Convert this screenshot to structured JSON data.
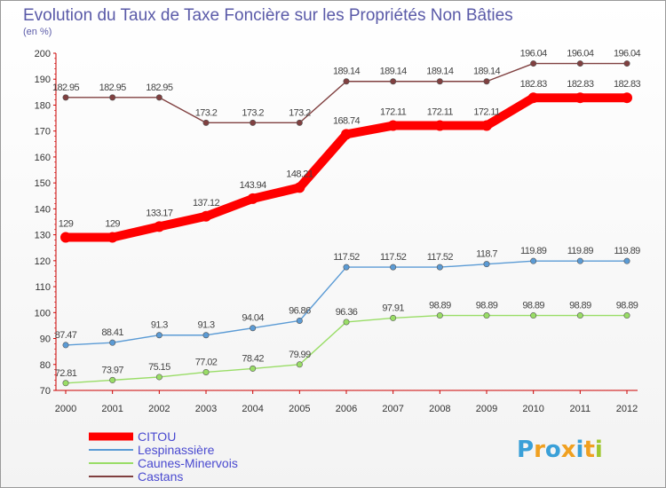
{
  "chart_data": {
    "type": "line",
    "title": "Evolution du Taux de Taxe Foncière sur les Propriétés Non Bâties",
    "subtitle": "(en %)",
    "x": [
      "2000",
      "2001",
      "2002",
      "2003",
      "2004",
      "2005",
      "2006",
      "2007",
      "2008",
      "2009",
      "2010",
      "2011",
      "2012"
    ],
    "ylim": [
      70,
      200
    ],
    "yticks": [
      70,
      80,
      90,
      100,
      110,
      120,
      130,
      140,
      150,
      160,
      170,
      180,
      190,
      200
    ],
    "grid": false,
    "legend_position": "bottom-left",
    "series": [
      {
        "name": "CITOU",
        "color": "#ff0000",
        "values": [
          129,
          129,
          133.17,
          137.12,
          143.94,
          148.21,
          168.74,
          172.11,
          172.11,
          172.11,
          182.83,
          182.83,
          182.83
        ],
        "labels": [
          "129",
          "129",
          "133.17",
          "137.12",
          "143.94",
          "148.21",
          "168.74",
          "172.11",
          "172.11",
          "172.11",
          "182.83",
          "182.83",
          "182.83"
        ]
      },
      {
        "name": "Lespinassière",
        "color": "#5b9bd5",
        "values": [
          87.47,
          88.41,
          91.3,
          91.3,
          94.04,
          96.86,
          117.52,
          117.52,
          117.52,
          118.7,
          119.89,
          119.89,
          119.89
        ],
        "labels": [
          "87.47",
          "88.41",
          "91.3",
          "91.3",
          "94.04",
          "96.86",
          "117.52",
          "117.52",
          "117.52",
          "118.7",
          "119.89",
          "119.89",
          "119.89"
        ]
      },
      {
        "name": "Caunes-Minervois",
        "color": "#99dd66",
        "values": [
          72.81,
          73.97,
          75.15,
          77.02,
          78.42,
          79.99,
          96.36,
          97.91,
          98.89,
          98.89,
          98.89,
          98.89,
          98.89
        ],
        "labels": [
          "72.81",
          "73.97",
          "75.15",
          "77.02",
          "78.42",
          "79.99",
          "96.36",
          "97.91",
          "98.89",
          "98.89",
          "98.89",
          "98.89",
          "98.89"
        ]
      },
      {
        "name": "Castans",
        "color": "#804040",
        "values": [
          182.95,
          182.95,
          182.95,
          173.2,
          173.2,
          173.2,
          189.14,
          189.14,
          189.14,
          189.14,
          196.04,
          196.04,
          196.04
        ],
        "labels": [
          "182.95",
          "182.95",
          "182.95",
          "173.2",
          "173.2",
          "173.2",
          "189.14",
          "189.14",
          "189.14",
          "189.14",
          "196.04",
          "196.04",
          "196.04"
        ]
      }
    ]
  },
  "logo": {
    "text": "Proxiti",
    "letters": [
      "P",
      "r",
      "o",
      "x",
      "i",
      "t",
      "i"
    ],
    "colors": [
      "#3aa0d8",
      "#f0a020",
      "#3aa0d8",
      "#f0a020",
      "#3aa0d8",
      "#f0a020",
      "#a0c830"
    ]
  }
}
